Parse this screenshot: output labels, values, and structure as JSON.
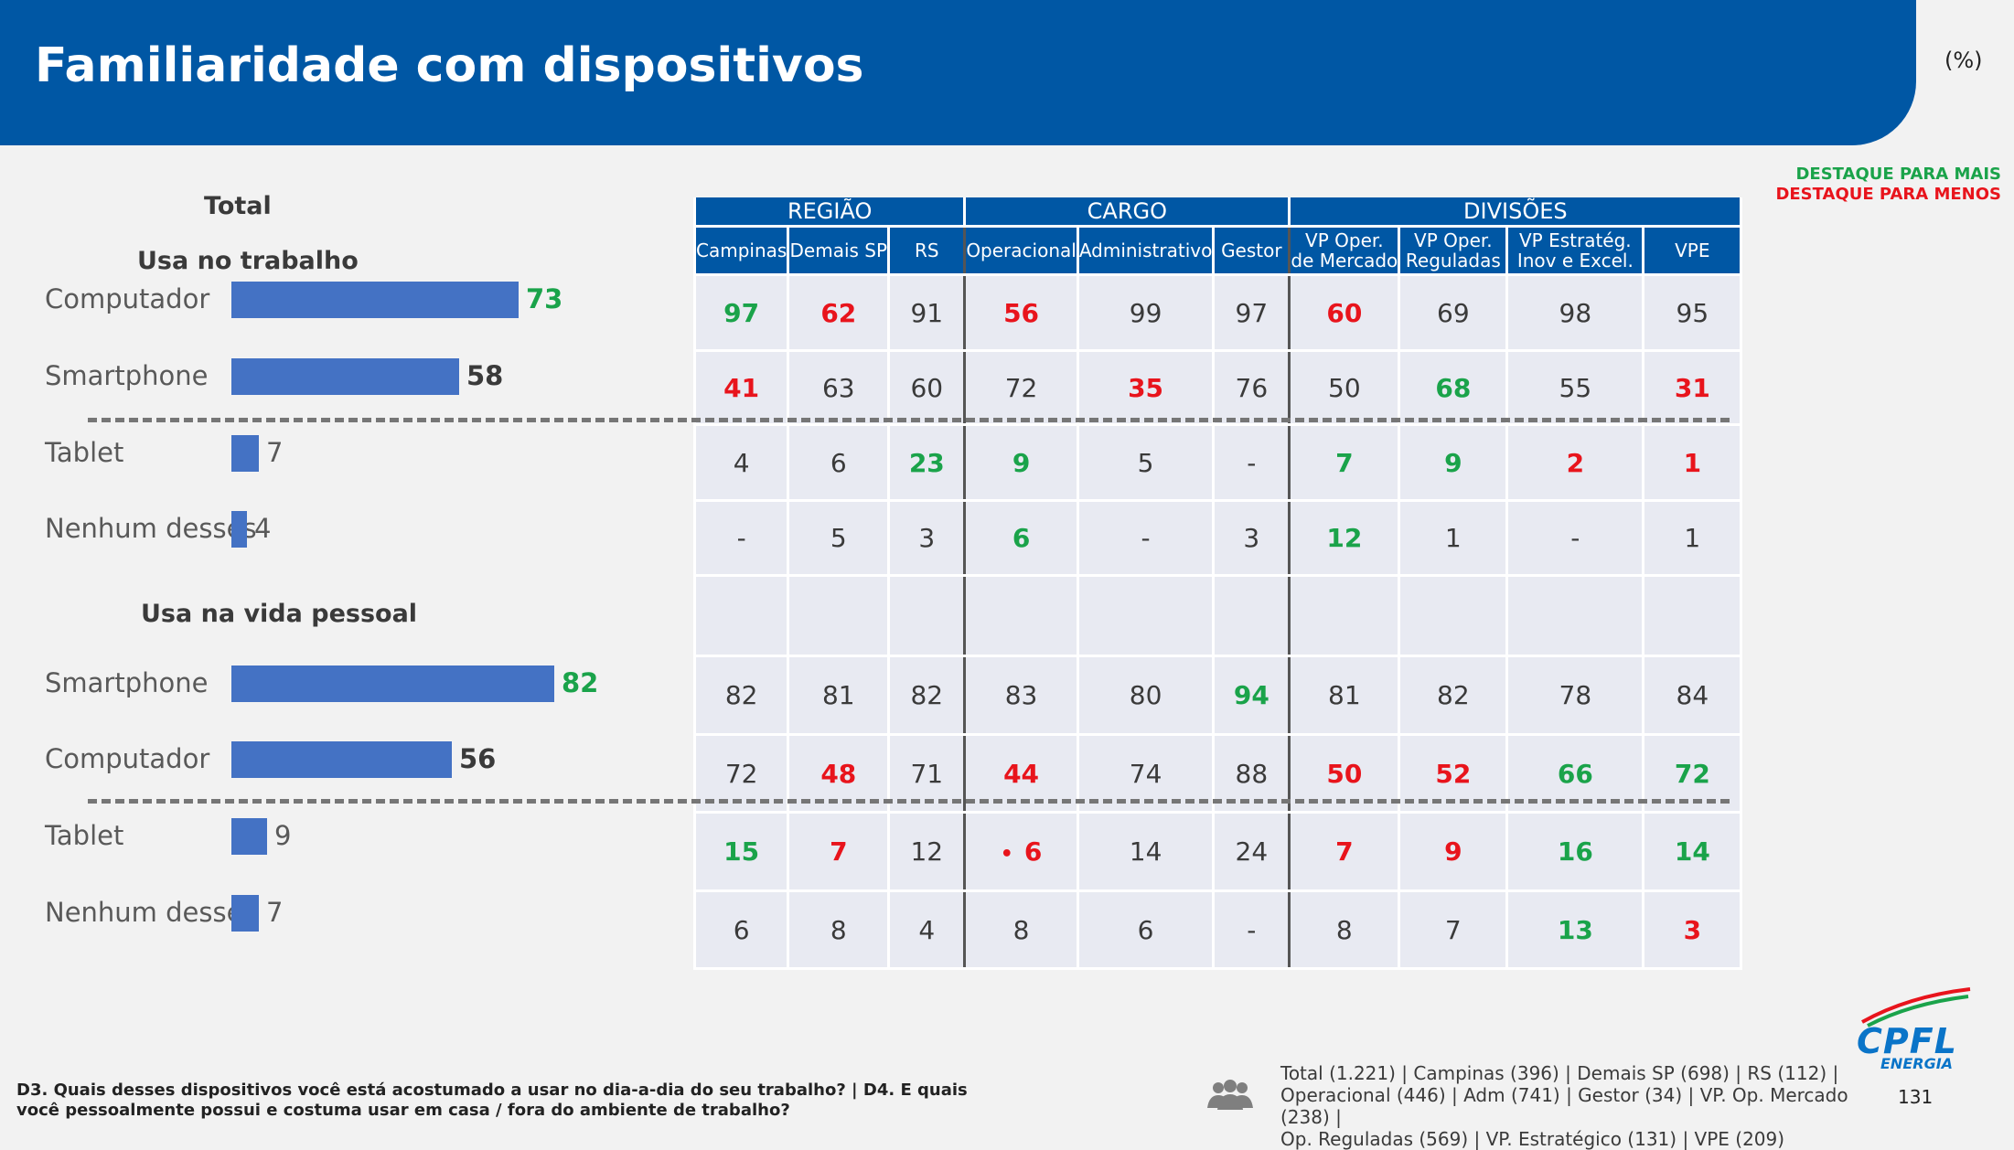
{
  "page": {
    "title": "Familiaridade com dispositivos",
    "unit": "(%)"
  },
  "legend": {
    "more": "DESTAQUE PARA MAIS",
    "less": "DESTAQUE PARA MENOS"
  },
  "left": {
    "total_label": "Total",
    "work_section": "Usa no trabalho",
    "personal_section": "Usa na vida pessoal",
    "work": [
      {
        "label": "Computador",
        "value": "73",
        "frac": 0.73
      },
      {
        "label": "Smartphone",
        "value": "58",
        "frac": 0.58
      },
      {
        "label": "Tablet",
        "value": "7",
        "frac": 0.07
      },
      {
        "label": "Nenhum desses",
        "value": "4",
        "frac": 0.04
      }
    ],
    "personal": [
      {
        "label": "Smartphone",
        "value": "82",
        "frac": 0.82
      },
      {
        "label": "Computador",
        "value": "56",
        "frac": 0.56
      },
      {
        "label": "Tablet",
        "value": "9",
        "frac": 0.09
      },
      {
        "label": "Nenhum desses",
        "value": "7",
        "frac": 0.07
      }
    ]
  },
  "table": {
    "groups": [
      "REGIÃO",
      "CARGO",
      "DIVISÕES"
    ],
    "columns": [
      {
        "l1": "Campinas",
        "l2": ""
      },
      {
        "l1": "Demais SP",
        "l2": ""
      },
      {
        "l1": "RS",
        "l2": ""
      },
      {
        "l1": "Operacional",
        "l2": ""
      },
      {
        "l1": "Administrativo",
        "l2": ""
      },
      {
        "l1": "Gestor",
        "l2": ""
      },
      {
        "l1": "VP Oper.",
        "l2": "de Mercado"
      },
      {
        "l1": "VP Oper.",
        "l2": "Reguladas"
      },
      {
        "l1": "VP Estratég.",
        "l2": "Inov e Excel."
      },
      {
        "l1": "VPE",
        "l2": ""
      }
    ],
    "rows": [
      [
        [
          "97",
          "g"
        ],
        [
          "62",
          "r"
        ],
        [
          "91",
          ""
        ],
        [
          "56",
          "r"
        ],
        [
          "99",
          ""
        ],
        [
          "97",
          ""
        ],
        [
          "60",
          "r"
        ],
        [
          "69",
          ""
        ],
        [
          "98",
          ""
        ],
        [
          "95",
          ""
        ]
      ],
      [
        [
          "41",
          "r"
        ],
        [
          "63",
          ""
        ],
        [
          "60",
          ""
        ],
        [
          "72",
          ""
        ],
        [
          "35",
          "r"
        ],
        [
          "76",
          ""
        ],
        [
          "50",
          ""
        ],
        [
          "68",
          "g"
        ],
        [
          "55",
          ""
        ],
        [
          "31",
          "r"
        ]
      ],
      [
        [
          "4",
          ""
        ],
        [
          "6",
          ""
        ],
        [
          "23",
          "g"
        ],
        [
          "9",
          "g"
        ],
        [
          "5",
          ""
        ],
        [
          "-",
          ""
        ],
        [
          "7",
          "g"
        ],
        [
          "9",
          "g"
        ],
        [
          "2",
          "r"
        ],
        [
          "1",
          "r"
        ]
      ],
      [
        [
          "-",
          ""
        ],
        [
          "5",
          ""
        ],
        [
          "3",
          ""
        ],
        [
          "6",
          "g"
        ],
        [
          "-",
          ""
        ],
        [
          "3",
          ""
        ],
        [
          "12",
          "g"
        ],
        [
          "1",
          ""
        ],
        [
          "-",
          ""
        ],
        [
          "1",
          ""
        ]
      ],
      [
        [
          "",
          ""
        ],
        [
          "",
          ""
        ],
        [
          "",
          ""
        ],
        [
          "",
          ""
        ],
        [
          "",
          ""
        ],
        [
          "",
          ""
        ],
        [
          "",
          ""
        ],
        [
          "",
          ""
        ],
        [
          "",
          ""
        ],
        [
          "",
          ""
        ]
      ],
      [
        [
          "82",
          ""
        ],
        [
          "81",
          ""
        ],
        [
          "82",
          ""
        ],
        [
          "83",
          ""
        ],
        [
          "80",
          ""
        ],
        [
          "94",
          "g"
        ],
        [
          "81",
          ""
        ],
        [
          "82",
          ""
        ],
        [
          "78",
          ""
        ],
        [
          "84",
          ""
        ]
      ],
      [
        [
          "72",
          ""
        ],
        [
          "48",
          "r"
        ],
        [
          "71",
          ""
        ],
        [
          "44",
          "r"
        ],
        [
          "74",
          ""
        ],
        [
          "88",
          ""
        ],
        [
          "50",
          "r"
        ],
        [
          "52",
          "r"
        ],
        [
          "66",
          "g"
        ],
        [
          "72",
          "g"
        ]
      ],
      [
        [
          "15",
          "g"
        ],
        [
          "7",
          "r"
        ],
        [
          "12",
          ""
        ],
        [
          "6",
          "r"
        ],
        [
          "14",
          ""
        ],
        [
          "24",
          ""
        ],
        [
          "7",
          "r"
        ],
        [
          "9",
          "r"
        ],
        [
          "16",
          "g"
        ],
        [
          "14",
          "g"
        ]
      ],
      [
        [
          "6",
          ""
        ],
        [
          "8",
          ""
        ],
        [
          "4",
          ""
        ],
        [
          "8",
          ""
        ],
        [
          "6",
          ""
        ],
        [
          "-",
          ""
        ],
        [
          "8",
          ""
        ],
        [
          "7",
          ""
        ],
        [
          "13",
          "g"
        ],
        [
          "3",
          "r"
        ]
      ]
    ],
    "bullet": "•"
  },
  "footer": {
    "question": "D3. Quais desses dispositivos você está acostumado a usar no dia-a-dia do seu trabalho? | D4. E quais você pessoalmente possui e costuma usar em casa / fora do ambiente de trabalho?",
    "base_line1": "Total (1.221) | Campinas (396) | Demais SP (698) | RS (112) |",
    "base_line2": "Operacional (446) | Adm (741) | Gestor (34) | VP. Op. Mercado (238) |",
    "base_line3": "Op. Reguladas (569) | VP. Estratégico (131) | VPE (209)",
    "page_number": "131",
    "logo_text": "CPFL",
    "logo_sub": "ENERGIA"
  },
  "colors": {
    "brand_blue": "#0057a4",
    "bar": "#4472c4",
    "positive": "#1aa34a",
    "negative": "#e8141c"
  }
}
